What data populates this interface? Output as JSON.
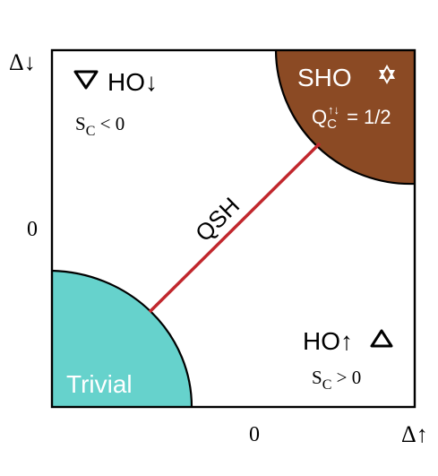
{
  "axes": {
    "y_label": "Δ↓",
    "x_label": "Δ↑",
    "y_tick": "0",
    "x_tick": "0"
  },
  "regions": {
    "top_left": {
      "name": "HO↓",
      "condition": "S_C < 0",
      "icon": "triangle-down-icon"
    },
    "bottom_right": {
      "name": "HO↑",
      "condition": "S_C > 0",
      "icon": "triangle-up-icon"
    },
    "sho": {
      "name": "SHO",
      "charge": "Q_C^{↑↓} = 1/2",
      "icon": "star-of-david-icon",
      "color": "#8b4a24"
    },
    "trivial": {
      "name": "Trivial",
      "color": "#66d2cc"
    },
    "qsh": {
      "name": "QSH",
      "color": "#c1272d"
    }
  }
}
